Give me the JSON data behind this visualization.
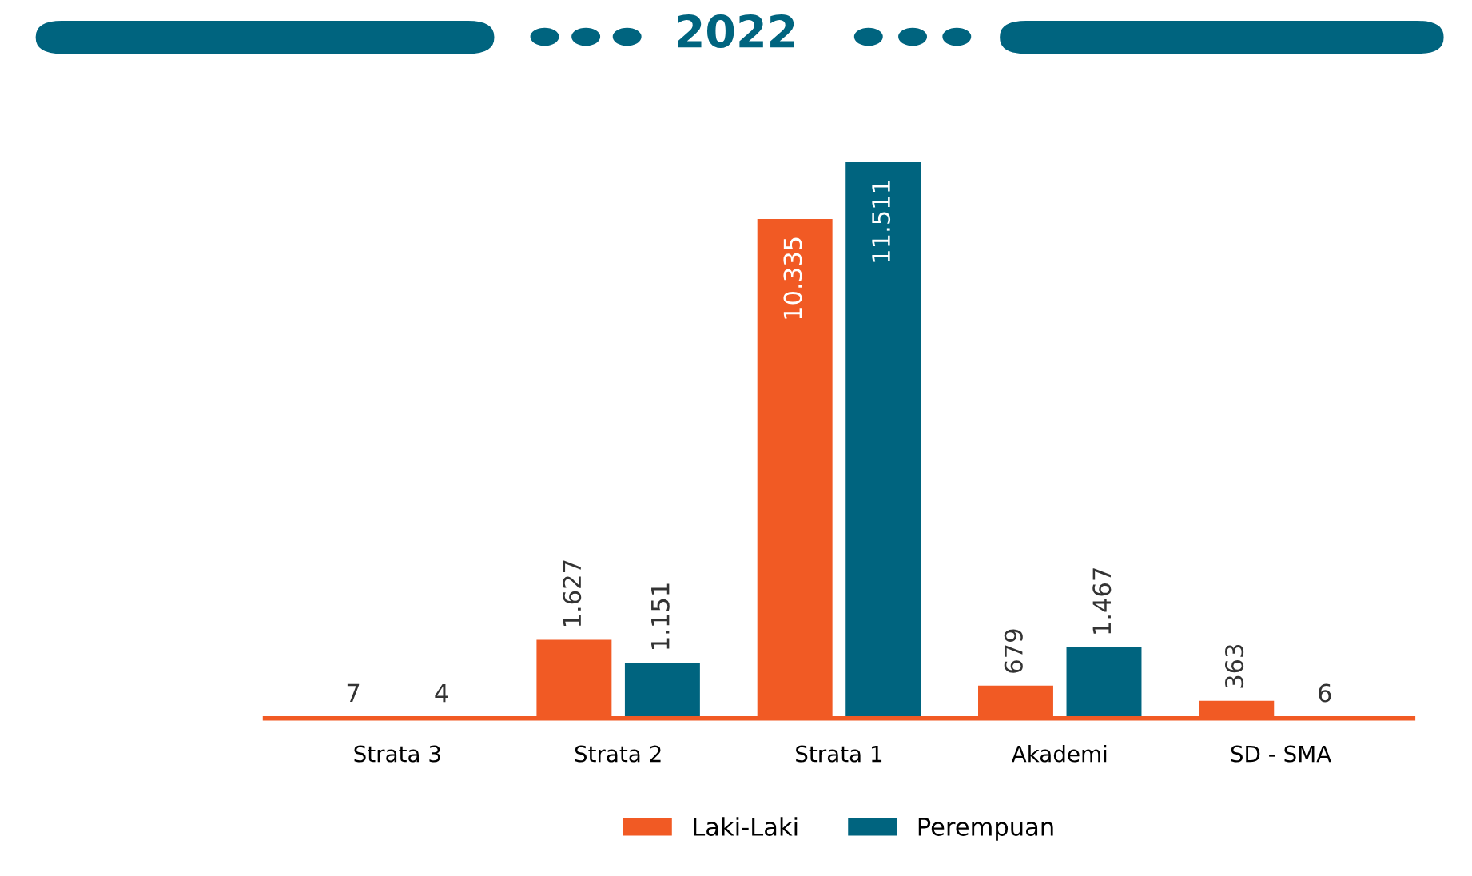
{
  "chart_data": {
    "type": "bar",
    "title": "2022",
    "categories": [
      "Strata 3",
      "Strata 2",
      "Strata 1",
      "Akademi",
      "SD - SMA"
    ],
    "series": [
      {
        "name": "Laki-Laki",
        "color": "#f15a24",
        "values": [
          7,
          1627,
          10335,
          679,
          363
        ],
        "value_labels": [
          "7",
          "1.627",
          "10.335",
          "679",
          "363"
        ]
      },
      {
        "name": "Perempuan",
        "color": "#00647f",
        "values": [
          4,
          1151,
          11511,
          1467,
          6
        ],
        "value_labels": [
          "4",
          "1.151",
          "11.511",
          "1.467",
          "6"
        ]
      }
    ],
    "legend": "bottom",
    "grid": false
  }
}
